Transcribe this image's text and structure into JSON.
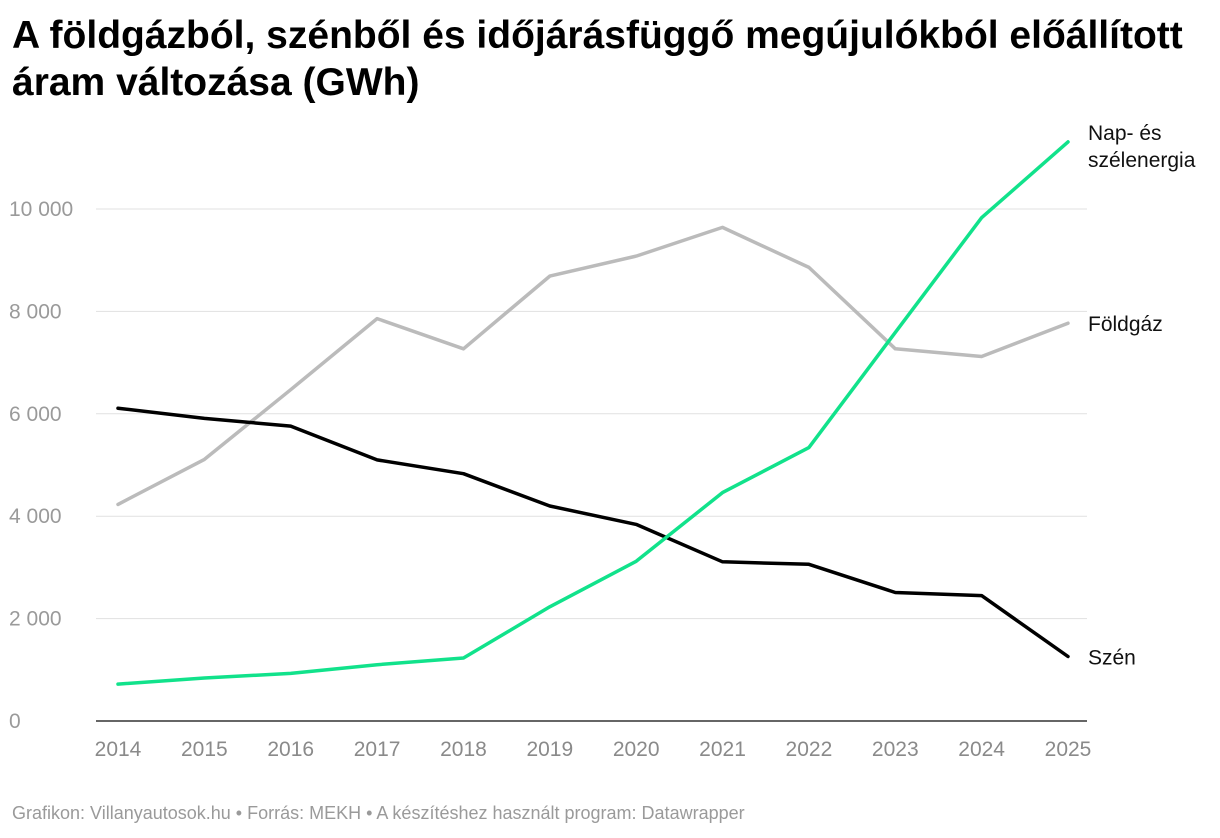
{
  "title": "A földgázból, szénből és időjárásfüggő megújulókból előállított áram változása (GWh)",
  "footer": "Grafikon: Villanyautosok.hu • Forrás: MEKH • A készítéshez használt program: Datawrapper",
  "chart_data": {
    "type": "line",
    "title": "A földgázból, szénből és időjárásfüggő megújulókból előállított áram változása (GWh)",
    "xlabel": "",
    "ylabel": "",
    "x": [
      "2014",
      "2015",
      "2016",
      "2017",
      "2018",
      "2019",
      "2020",
      "2021",
      "2022",
      "2023",
      "2024",
      "2025"
    ],
    "ylim": [
      0,
      11500
    ],
    "yticks": [
      0,
      2000,
      4000,
      6000,
      8000,
      10000
    ],
    "ytick_labels": [
      "0",
      "2 000",
      "4 000",
      "6 000",
      "8 000",
      "10 000"
    ],
    "grid": true,
    "series": [
      {
        "name": "Földgáz",
        "label_lines": [
          "Földgáz"
        ],
        "color": "#bbbbbb",
        "values": [
          4230,
          5110,
          6470,
          7860,
          7270,
          8690,
          9080,
          9640,
          8860,
          7270,
          7120,
          7770
        ]
      },
      {
        "name": "Szén",
        "label_lines": [
          "Szén"
        ],
        "color": "#000000",
        "values": [
          6110,
          5910,
          5760,
          5100,
          4830,
          4200,
          3840,
          3110,
          3060,
          2510,
          2450,
          1260
        ]
      },
      {
        "name": "Nap- és szélenergia",
        "label_lines": [
          "Nap- és",
          "szélenergia"
        ],
        "color": "#11e28b",
        "values": [
          720,
          840,
          930,
          1100,
          1230,
          2230,
          3120,
          4460,
          5340,
          7590,
          9830,
          11310
        ]
      }
    ]
  }
}
